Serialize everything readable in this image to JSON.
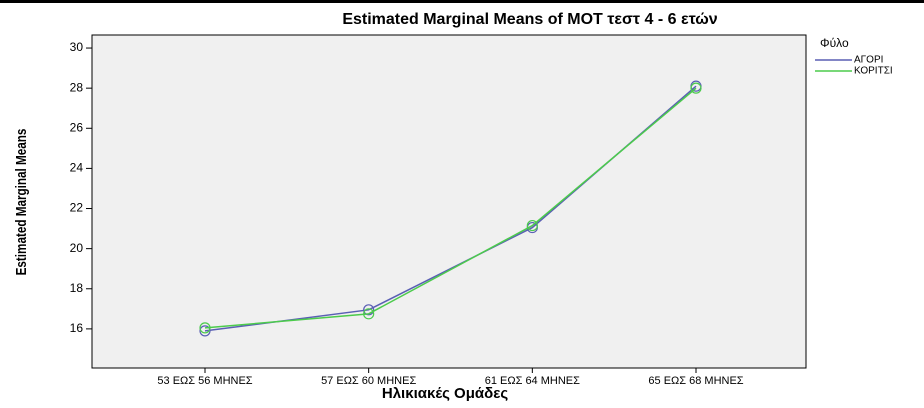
{
  "chart_data": {
    "type": "line",
    "title": "Estimated Marginal Means of MOT τεστ 4 - 6 ετών",
    "x_label": "Ηλικιακές Ομάδες",
    "y_label": "Estimated Marginal Means",
    "legend_title": "Φύλο",
    "categories": [
      "53 ΕΩΣ 56 ΜΗΝΕΣ",
      "57 ΕΩΣ 60 ΜΗΝΕΣ",
      "61 ΕΩΣ 64 ΜΗΝΕΣ",
      "65 ΕΩΣ 68 ΜΗΝΕΣ"
    ],
    "series": [
      {
        "name": "ΑΓΟΡΙ",
        "color": "#5a5fb4",
        "values": [
          15.9,
          16.95,
          21.05,
          28.1
        ]
      },
      {
        "name": "ΚΟΡΙΤΣΙ",
        "color": "#4ccb4c",
        "values": [
          16.05,
          16.75,
          21.15,
          28.0
        ]
      }
    ],
    "ylim": [
      14.05,
      30.65
    ],
    "yticks": [
      16,
      18,
      20,
      22,
      24,
      26,
      28,
      30
    ],
    "legend": "right"
  }
}
